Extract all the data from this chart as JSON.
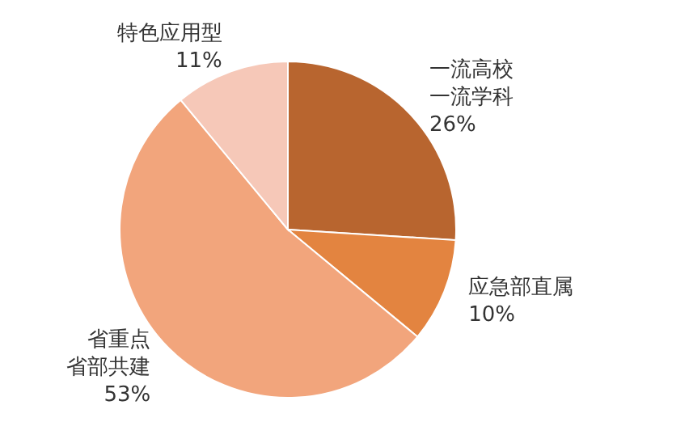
{
  "chart_data": {
    "type": "pie",
    "categories": [
      "一流高校一流学科",
      "应急部直属",
      "省重点省部共建",
      "特色应用型"
    ],
    "values": [
      26,
      10,
      53,
      11
    ],
    "value_labels": [
      "26%",
      "10%",
      "53%",
      "11%"
    ],
    "colors": [
      "#b8652f",
      "#e38440",
      "#f2a57c",
      "#f6c8b8"
    ]
  }
}
